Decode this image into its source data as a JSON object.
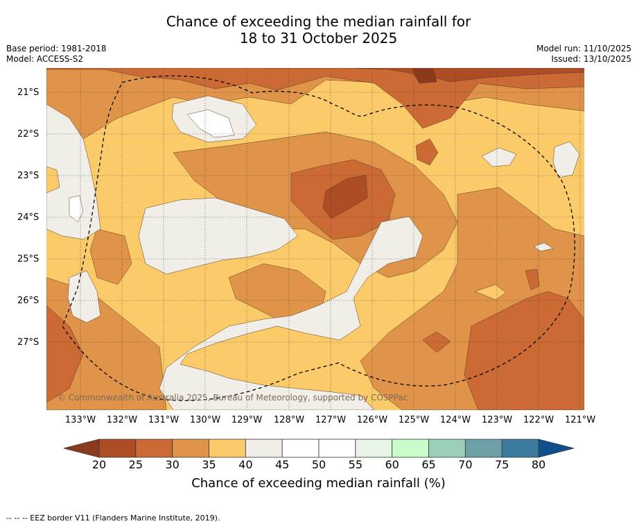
{
  "title": {
    "line1": "Chance of exceeding the median rainfall for",
    "line2": "18 to 31 October 2025"
  },
  "meta": {
    "base_period": "Base period: 1981-2018",
    "model": "Model: ACCESS-S2",
    "model_run": "Model run: 11/10/2025",
    "issued": "Issued: 13/10/2025"
  },
  "map": {
    "lat_labels": [
      "21°S",
      "22°S",
      "23°S",
      "24°S",
      "25°S",
      "26°S",
      "27°S"
    ],
    "lon_labels": [
      "133°W",
      "132°W",
      "131°W",
      "130°W",
      "129°W",
      "128°W",
      "127°W",
      "126°W",
      "125°W",
      "124°W",
      "123°W",
      "122°W",
      "121°W"
    ],
    "copyright": "© Commonwealth of Australia 2025, Bureau of Meteorology, supported by COSPPac"
  },
  "colorbar": {
    "ticks": [
      "20",
      "25",
      "30",
      "35",
      "40",
      "45",
      "50",
      "55",
      "60",
      "65",
      "70",
      "75",
      "80"
    ],
    "colors": [
      "#ad4d25",
      "#cb6a35",
      "#e0944a",
      "#fbcb6a",
      "#f1ede7",
      "#ffffff",
      "#ffffff",
      "#e7f4e6",
      "#c9fcc8",
      "#9bd0b8",
      "#6da1a7",
      "#3d7b9e"
    ],
    "low_color": "#8c3a1c",
    "high_color": "#104f8e",
    "title": "Chance of exceeding median rainfall (%)"
  },
  "footer": "--  --  -- EEZ border V11 (Flanders Marine Institute, 2019)."
}
